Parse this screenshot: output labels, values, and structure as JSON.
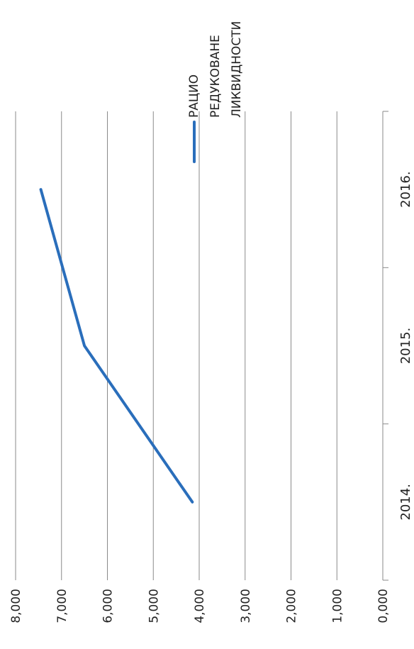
{
  "chart_data": {
    "type": "line",
    "orientation": "rotated-90-clockwise",
    "categories": [
      "2014.",
      "2015.",
      "2016."
    ],
    "series": [
      {
        "name": "РАЦИО РЕДУКОВАНЕ ЛИКВИДНОСТИ",
        "values": [
          4.15,
          6.5,
          7.45
        ],
        "color": "#2a6ebb"
      }
    ],
    "legend_lines": [
      "РАЦИО",
      "РЕДУКОВАНЕ",
      "ЛИКВИДНОСТИ"
    ],
    "ylim": [
      0,
      8
    ],
    "yticks": [
      "0,000",
      "1,000",
      "2,000",
      "3,000",
      "4,000",
      "5,000",
      "6,000",
      "7,000",
      "8,000"
    ],
    "grid": true,
    "legend_position": "top"
  }
}
